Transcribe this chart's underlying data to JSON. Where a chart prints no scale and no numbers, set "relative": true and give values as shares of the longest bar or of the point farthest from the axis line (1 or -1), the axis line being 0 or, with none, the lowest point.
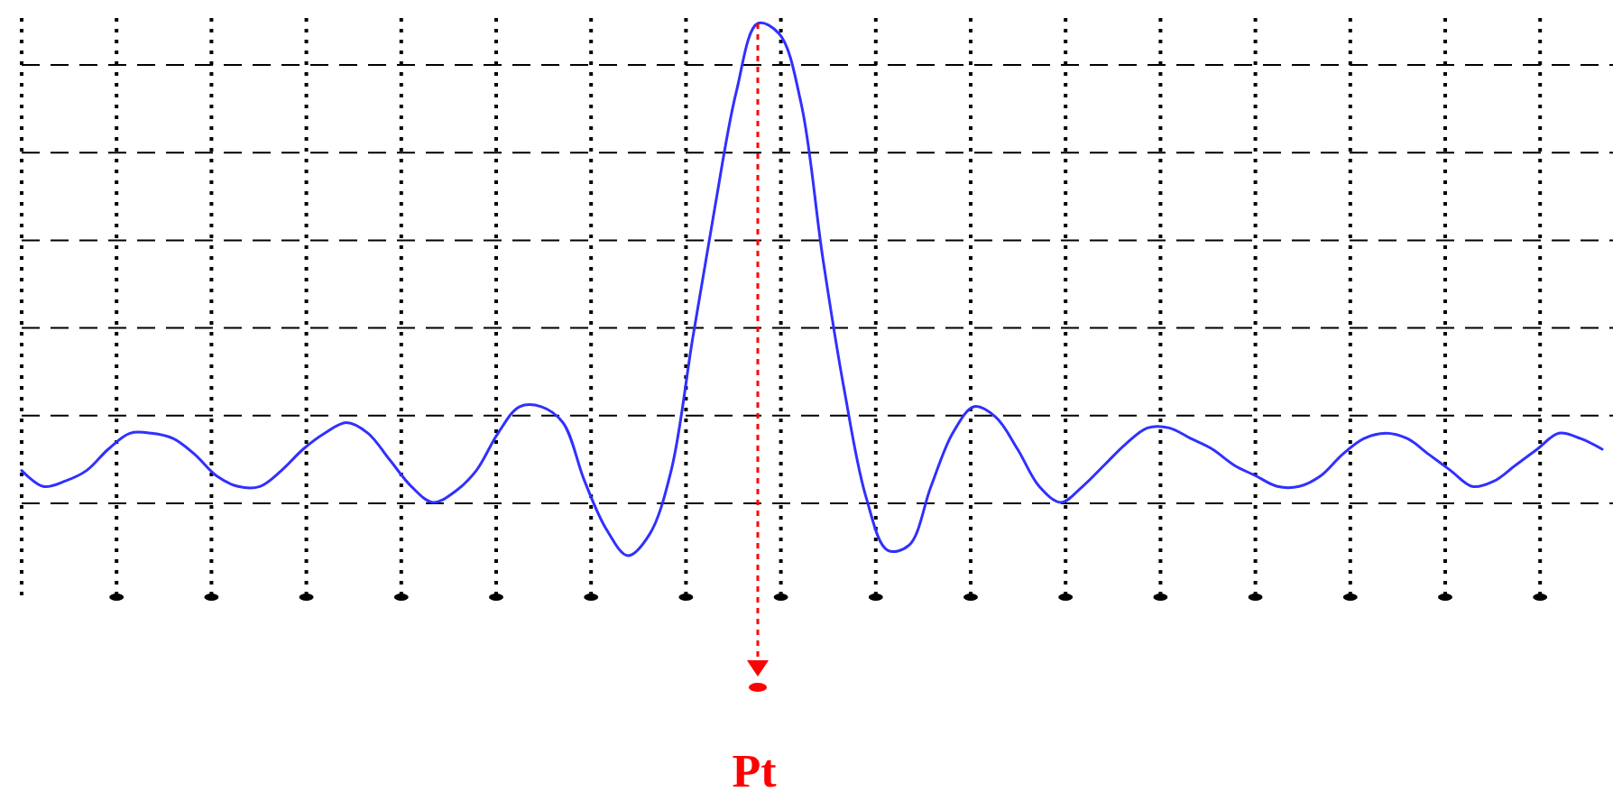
{
  "chart_data": {
    "type": "line",
    "relative": true,
    "grid": true,
    "marker": "none",
    "line_style": "solid",
    "categories": [
      null,
      null,
      null,
      null,
      null,
      null,
      null,
      null,
      null,
      null,
      null,
      null,
      null,
      null,
      null,
      null,
      null,
      null,
      null,
      null,
      null,
      null,
      null,
      null,
      null,
      null,
      null,
      null,
      null,
      null,
      null,
      null,
      null,
      null,
      null,
      null,
      null,
      null,
      null,
      null,
      null,
      null,
      null,
      null,
      null,
      null,
      null,
      null,
      null,
      null,
      null,
      null,
      null,
      null,
      null,
      null,
      null,
      null,
      null,
      null,
      null,
      null,
      null,
      null,
      null,
      null,
      null,
      null,
      null,
      null,
      null,
      null,
      null,
      null
    ],
    "series": [
      {
        "color": "#3030ff",
        "values": [
          0.16,
          0.13,
          0.14,
          0.16,
          0.2,
          0.23,
          0.23,
          0.22,
          0.19,
          0.15,
          0.13,
          0.13,
          0.16,
          0.2,
          0.23,
          0.25,
          0.23,
          0.18,
          0.13,
          0.1,
          0.12,
          0.16,
          0.23,
          0.28,
          0.28,
          0.25,
          0.14,
          0.05,
          0.0,
          0.04,
          0.16,
          0.41,
          0.65,
          0.87,
          1.0,
          0.98,
          0.85,
          0.56,
          0.31,
          0.11,
          0.01,
          0.02,
          0.13,
          0.23,
          0.28,
          0.26,
          0.2,
          0.13,
          0.1,
          0.13,
          0.17,
          0.21,
          0.24,
          0.24,
          0.22,
          0.2,
          0.17,
          0.15,
          0.13,
          0.13,
          0.15,
          0.19,
          0.22,
          0.23,
          0.22,
          0.19,
          0.16,
          0.13,
          0.14,
          0.17,
          0.2,
          0.23,
          0.22,
          0.2
        ]
      }
    ],
    "annotations": [
      "Pt"
    ]
  }
}
